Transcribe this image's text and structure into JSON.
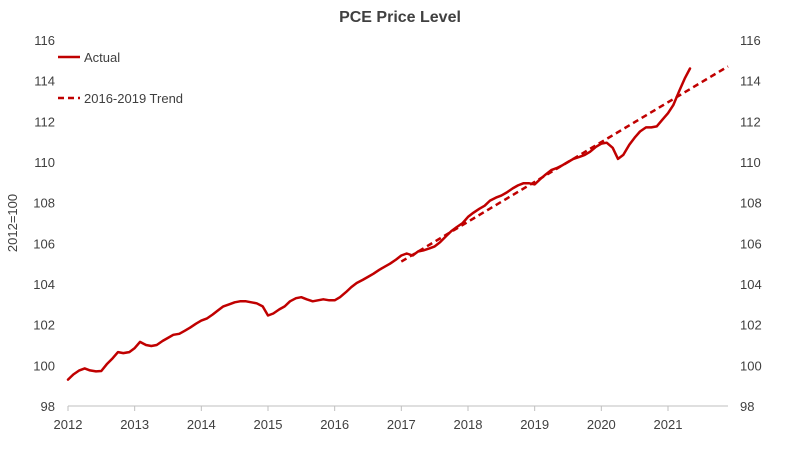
{
  "chart_data": {
    "type": "line",
    "title": "PCE Price Level",
    "ylabel": "2012=100",
    "xlabel": "",
    "xlim": [
      2012,
      2021.9
    ],
    "ylim": [
      98,
      116
    ],
    "x_ticks": [
      "2012",
      "2013",
      "2014",
      "2015",
      "2016",
      "2017",
      "2018",
      "2019",
      "2020",
      "2021"
    ],
    "y_ticks": [
      "98",
      "100",
      "102",
      "104",
      "106",
      "108",
      "110",
      "112",
      "114",
      "116"
    ],
    "grid": false,
    "legend_position": "top-left",
    "colors": {
      "series": "#c00000",
      "text": "#404040",
      "axis": "#bfbfbf"
    },
    "series": [
      {
        "name": "Actual",
        "style": "solid",
        "x": [
          2012.0,
          2012.08,
          2012.17,
          2012.25,
          2012.33,
          2012.42,
          2012.5,
          2012.58,
          2012.67,
          2012.75,
          2012.83,
          2012.92,
          2013.0,
          2013.08,
          2013.17,
          2013.25,
          2013.33,
          2013.42,
          2013.5,
          2013.58,
          2013.67,
          2013.75,
          2013.83,
          2013.92,
          2014.0,
          2014.08,
          2014.17,
          2014.25,
          2014.33,
          2014.42,
          2014.5,
          2014.58,
          2014.67,
          2014.75,
          2014.83,
          2014.92,
          2015.0,
          2015.08,
          2015.17,
          2015.25,
          2015.33,
          2015.42,
          2015.5,
          2015.58,
          2015.67,
          2015.75,
          2015.83,
          2015.92,
          2016.0,
          2016.08,
          2016.17,
          2016.25,
          2016.33,
          2016.42,
          2016.5,
          2016.58,
          2016.67,
          2016.75,
          2016.83,
          2016.92,
          2017.0,
          2017.08,
          2017.17,
          2017.25,
          2017.33,
          2017.42,
          2017.5,
          2017.58,
          2017.67,
          2017.75,
          2017.83,
          2017.92,
          2018.0,
          2018.08,
          2018.17,
          2018.25,
          2018.33,
          2018.42,
          2018.5,
          2018.58,
          2018.67,
          2018.75,
          2018.83,
          2018.92,
          2019.0,
          2019.08,
          2019.17,
          2019.25,
          2019.33,
          2019.42,
          2019.5,
          2019.58,
          2019.67,
          2019.75,
          2019.83,
          2019.92,
          2020.0,
          2020.08,
          2020.17,
          2020.25,
          2020.33,
          2020.42,
          2020.5,
          2020.58,
          2020.67,
          2020.75,
          2020.83,
          2020.92,
          2021.0,
          2021.08,
          2021.17,
          2021.25,
          2021.33
        ],
        "values": [
          99.3,
          99.55,
          99.75,
          99.85,
          99.75,
          99.7,
          99.72,
          100.05,
          100.35,
          100.65,
          100.6,
          100.65,
          100.85,
          101.15,
          101.0,
          100.95,
          101.0,
          101.2,
          101.35,
          101.5,
          101.55,
          101.7,
          101.85,
          102.05,
          102.2,
          102.3,
          102.5,
          102.7,
          102.9,
          103.0,
          103.1,
          103.15,
          103.15,
          103.1,
          103.05,
          102.9,
          102.45,
          102.55,
          102.75,
          102.9,
          103.15,
          103.3,
          103.35,
          103.25,
          103.15,
          103.2,
          103.25,
          103.2,
          103.2,
          103.35,
          103.6,
          103.85,
          104.05,
          104.2,
          104.35,
          104.5,
          104.7,
          104.85,
          105.0,
          105.2,
          105.4,
          105.5,
          105.4,
          105.6,
          105.65,
          105.75,
          105.85,
          106.05,
          106.35,
          106.6,
          106.8,
          107.0,
          107.3,
          107.5,
          107.7,
          107.85,
          108.1,
          108.25,
          108.35,
          108.5,
          108.7,
          108.85,
          108.95,
          108.95,
          108.9,
          109.15,
          109.4,
          109.6,
          109.7,
          109.85,
          110.0,
          110.15,
          110.25,
          110.35,
          110.5,
          110.75,
          110.9,
          110.95,
          110.7,
          110.15,
          110.35,
          110.85,
          111.2,
          111.5,
          111.7,
          111.7,
          111.75,
          112.1,
          112.4,
          112.8,
          113.5,
          114.1,
          114.6
        ]
      },
      {
        "name": "2016-2019 Trend",
        "style": "dashed",
        "x": [
          2017.0,
          2021.9
        ],
        "values": [
          105.1,
          114.7
        ]
      }
    ]
  }
}
